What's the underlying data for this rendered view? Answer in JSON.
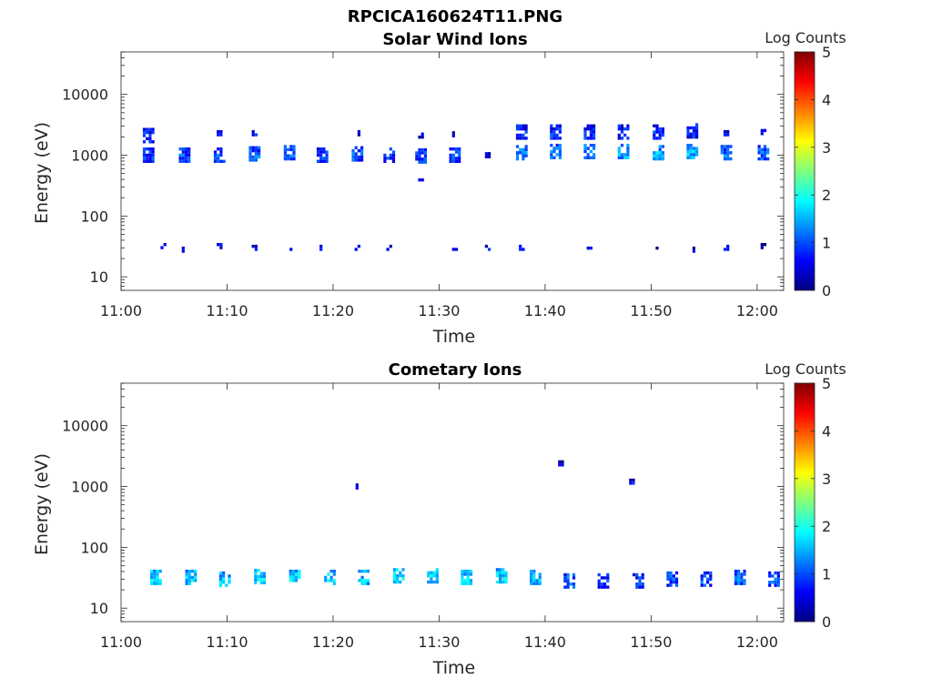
{
  "figure": {
    "filename_title": "RPCICA160624T11.PNG"
  },
  "colorscale": [
    "#00007f",
    "#0000ff",
    "#007fff",
    "#00ffff",
    "#7fff7f",
    "#ffff00",
    "#ff7f00",
    "#ff0000",
    "#7f0000"
  ],
  "chart_data": [
    {
      "type": "heatmap",
      "title": "Solar Wind Ions",
      "xlabel": "Time",
      "ylabel": "Energy (eV)",
      "xticks": [
        "11:00",
        "11:10",
        "11:20",
        "11:30",
        "11:40",
        "11:50",
        "12:00"
      ],
      "xlim_minutes": [
        0,
        62.5
      ],
      "ylog": true,
      "ylim": [
        6,
        50000
      ],
      "yticks": [
        "10",
        "100",
        "1000",
        "10000"
      ],
      "colorbar": {
        "label": "Log Counts",
        "ticks": [
          "0",
          "1",
          "2",
          "3",
          "4",
          "5"
        ],
        "range": [
          0,
          5
        ]
      },
      "bursts": [
        {
          "t": 2.6,
          "energies": [
            2100,
            1000
          ],
          "counts": [
            0.8,
            0.9
          ]
        },
        {
          "t": 4.0,
          "energies": [
            32
          ],
          "counts": [
            0.6
          ]
        },
        {
          "t": 6.0,
          "energies": [
            1000,
            28
          ],
          "counts": [
            1.0,
            0.6
          ]
        },
        {
          "t": 9.3,
          "energies": [
            2300,
            1000,
            32
          ],
          "counts": [
            0.6,
            1.0,
            0.6
          ]
        },
        {
          "t": 12.6,
          "energies": [
            2300,
            1050,
            30
          ],
          "counts": [
            0.6,
            1.1,
            0.6
          ]
        },
        {
          "t": 15.9,
          "energies": [
            1100,
            30
          ],
          "counts": [
            1.1,
            0.6
          ]
        },
        {
          "t": 19.0,
          "energies": [
            1000,
            30
          ],
          "counts": [
            0.9,
            0.6
          ]
        },
        {
          "t": 22.3,
          "energies": [
            2300,
            1050,
            30
          ],
          "counts": [
            0.6,
            1.0,
            0.6
          ]
        },
        {
          "t": 25.3,
          "energies": [
            1000,
            30
          ],
          "counts": [
            0.9,
            0.6
          ]
        },
        {
          "t": 28.3,
          "energies": [
            2100,
            970,
            370
          ],
          "counts": [
            0.5,
            0.9,
            0.5
          ]
        },
        {
          "t": 31.5,
          "energies": [
            2200,
            1000,
            30
          ],
          "counts": [
            0.6,
            1.0,
            0.6
          ]
        },
        {
          "t": 34.6,
          "energies": [
            1000,
            30
          ],
          "counts": [
            0.7,
            0.6
          ]
        },
        {
          "t": 37.8,
          "energies": [
            2400,
            1100,
            30
          ],
          "counts": [
            0.8,
            1.2,
            0.6
          ]
        },
        {
          "t": 41.0,
          "energies": [
            2400,
            1150
          ],
          "counts": [
            0.8,
            1.2
          ]
        },
        {
          "t": 44.2,
          "energies": [
            2400,
            1150,
            28
          ],
          "counts": [
            0.8,
            1.3,
            0.6
          ]
        },
        {
          "t": 47.4,
          "energies": [
            2400,
            1150
          ],
          "counts": [
            0.8,
            1.5
          ]
        },
        {
          "t": 50.7,
          "energies": [
            2400,
            1100,
            28
          ],
          "counts": [
            0.8,
            1.5,
            0.6
          ]
        },
        {
          "t": 53.9,
          "energies": [
            2500,
            1150,
            28
          ],
          "counts": [
            0.8,
            1.5,
            0.6
          ]
        },
        {
          "t": 57.1,
          "energies": [
            2300,
            1100,
            30
          ],
          "counts": [
            0.6,
            1.2,
            0.6
          ]
        },
        {
          "t": 60.6,
          "energies": [
            2400,
            1100,
            32
          ],
          "counts": [
            0.6,
            1.1,
            0.6
          ]
        }
      ]
    },
    {
      "type": "heatmap",
      "title": "Cometary Ions",
      "xlabel": "Time",
      "ylabel": "Energy (eV)",
      "xticks": [
        "11:00",
        "11:10",
        "11:20",
        "11:30",
        "11:40",
        "11:50",
        "12:00"
      ],
      "xlim_minutes": [
        0,
        62.5
      ],
      "ylog": true,
      "ylim": [
        6,
        50000
      ],
      "yticks": [
        "10",
        "100",
        "1000",
        "10000"
      ],
      "colorbar": {
        "label": "Log Counts",
        "ticks": [
          "0",
          "1",
          "2",
          "3",
          "4",
          "5"
        ],
        "range": [
          0,
          5
        ]
      },
      "bursts": [
        {
          "t": 3.3,
          "energies": [
            32
          ],
          "counts": [
            1.7
          ]
        },
        {
          "t": 6.6,
          "energies": [
            32
          ],
          "counts": [
            1.6
          ]
        },
        {
          "t": 9.8,
          "energies": [
            30
          ],
          "counts": [
            1.6
          ]
        },
        {
          "t": 13.1,
          "energies": [
            33
          ],
          "counts": [
            1.7
          ]
        },
        {
          "t": 16.4,
          "energies": [
            32
          ],
          "counts": [
            1.7
          ]
        },
        {
          "t": 19.7,
          "energies": [
            32
          ],
          "counts": [
            1.7
          ]
        },
        {
          "t": 22.4,
          "energies": [
            1000
          ],
          "counts": [
            0.6
          ]
        },
        {
          "t": 22.9,
          "energies": [
            32
          ],
          "counts": [
            1.6
          ]
        },
        {
          "t": 26.2,
          "energies": [
            34
          ],
          "counts": [
            1.7
          ]
        },
        {
          "t": 29.4,
          "energies": [
            34
          ],
          "counts": [
            1.8
          ]
        },
        {
          "t": 32.6,
          "energies": [
            32
          ],
          "counts": [
            1.7
          ]
        },
        {
          "t": 35.9,
          "energies": [
            34
          ],
          "counts": [
            1.7
          ]
        },
        {
          "t": 39.1,
          "energies": [
            32
          ],
          "counts": [
            1.5
          ]
        },
        {
          "t": 41.5,
          "energies": [
            2400
          ],
          "counts": [
            0.6
          ]
        },
        {
          "t": 42.3,
          "energies": [
            28
          ],
          "counts": [
            1.1
          ]
        },
        {
          "t": 45.5,
          "energies": [
            28
          ],
          "counts": [
            0.9
          ]
        },
        {
          "t": 48.2,
          "energies": [
            1200
          ],
          "counts": [
            0.6
          ]
        },
        {
          "t": 48.8,
          "energies": [
            28
          ],
          "counts": [
            0.9
          ]
        },
        {
          "t": 52.0,
          "energies": [
            30
          ],
          "counts": [
            1.0
          ]
        },
        {
          "t": 55.2,
          "energies": [
            30
          ],
          "counts": [
            1.0
          ]
        },
        {
          "t": 58.4,
          "energies": [
            32
          ],
          "counts": [
            1.1
          ]
        },
        {
          "t": 61.6,
          "energies": [
            30
          ],
          "counts": [
            1.0
          ]
        }
      ]
    }
  ]
}
